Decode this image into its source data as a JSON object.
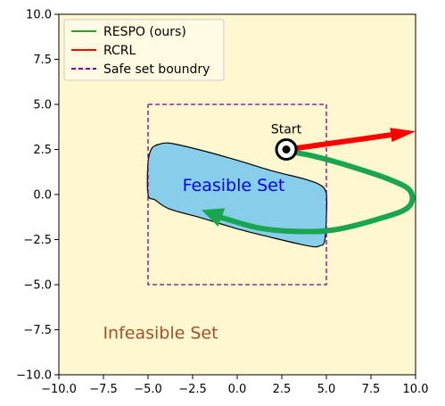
{
  "chart_data": {
    "type": "line",
    "xlim": [
      -10,
      10
    ],
    "ylim": [
      -10,
      10
    ],
    "grid": false,
    "xticks": [
      -10,
      -7.5,
      -5,
      -2.5,
      0,
      2.5,
      5,
      7.5,
      10
    ],
    "yticks": [
      -10,
      -7.5,
      -5,
      -2.5,
      0,
      2.5,
      5,
      7.5,
      10
    ],
    "xtick_labels": [
      "−10.0",
      "−7.5",
      "−5.0",
      "−2.5",
      "0.0",
      "2.5",
      "5.0",
      "7.5",
      "10.0"
    ],
    "ytick_labels": [
      "−10.0",
      "−7.5",
      "−5.0",
      "−2.5",
      "0.0",
      "2.5",
      "5.0",
      "7.5",
      "10.0"
    ],
    "legend": {
      "placement": "top-left",
      "entries": [
        {
          "label": "RESPO (ours)",
          "color": "#2ca02c",
          "style": "solid"
        },
        {
          "label": "RCRL",
          "color": "#ff0000",
          "style": "solid"
        },
        {
          "label": "Safe set boundry",
          "color": "#800080",
          "style": "dashed"
        }
      ]
    },
    "colors": {
      "infeasible_background": "#fff7cf",
      "feasible_fill": "#87ceeb",
      "respo": "#1aa551",
      "rcrl": "#ff0000",
      "safe_boundary": "#800080",
      "feasible_text": "#0000ff",
      "infeasible_text": "#a0522d"
    },
    "safe_set_boundary": {
      "x": [
        -5,
        5,
        5,
        -5,
        -5
      ],
      "y": [
        5,
        5,
        -5,
        -5,
        5
      ]
    },
    "feasible_region": {
      "x": [
        -4.5,
        -3.8,
        -2,
        0,
        2,
        3.8,
        4.7,
        5,
        5,
        4.9,
        4.6,
        4.3,
        3.5,
        2,
        0,
        -2,
        -3.8,
        -4.6,
        -5,
        -5,
        -4.8,
        -4.5
      ],
      "y": [
        2.75,
        2.85,
        2.45,
        1.9,
        1.3,
        0.85,
        0.5,
        0,
        -1.2,
        -2.6,
        -2.85,
        -2.9,
        -2.75,
        -2.4,
        -1.9,
        -1.3,
        -0.8,
        -0.3,
        0,
        1.8,
        2.55,
        2.75
      ]
    },
    "respo_path": {
      "x": [
        2.8,
        4.2,
        6.4,
        8.5,
        9.7,
        9.6,
        8.1,
        5.5,
        3.4,
        1.2,
        -0.8,
        -2.0
      ],
      "y": [
        2.4,
        2.15,
        1.55,
        0.85,
        0.2,
        -0.7,
        -1.3,
        -1.95,
        -2.05,
        -1.85,
        -1.3,
        -0.85
      ]
    },
    "rcrl_path": {
      "x": [
        2.8,
        10.0
      ],
      "y": [
        2.5,
        3.5
      ]
    },
    "start_point": {
      "x": 2.75,
      "y": 2.5
    },
    "annotations": [
      {
        "text": "Start",
        "x": 2.75,
        "y": 3.4
      },
      {
        "text": "Feasible Set",
        "x": -0.2,
        "y": 0.2
      },
      {
        "text": "Infeasible Set",
        "x": -4.3,
        "y": -8.0
      }
    ]
  }
}
